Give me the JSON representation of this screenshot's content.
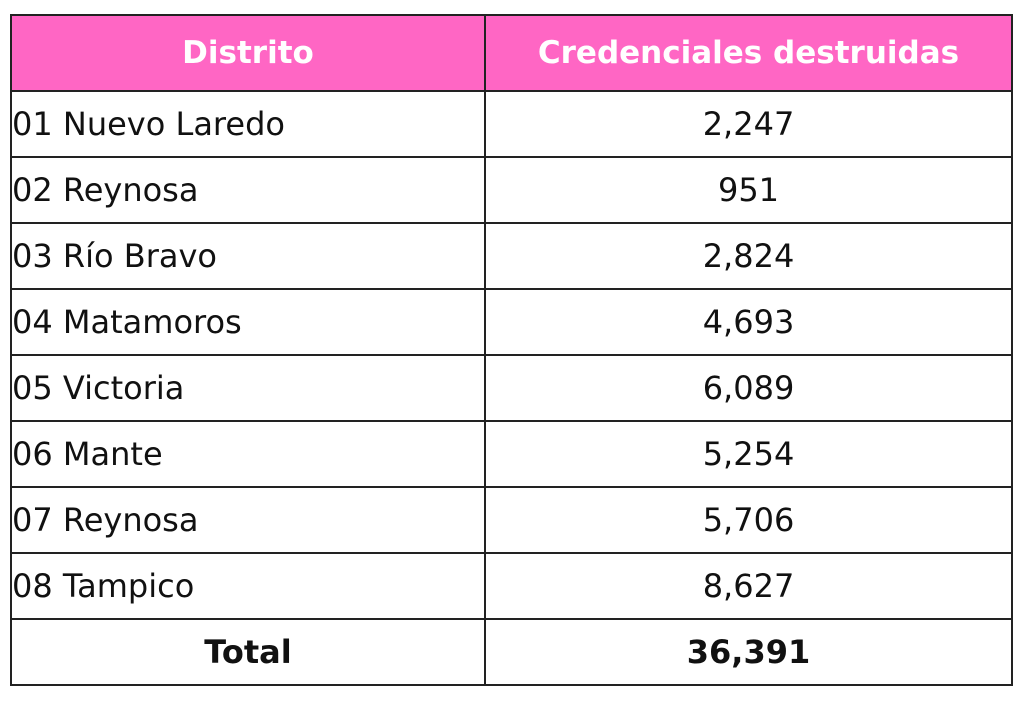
{
  "table": {
    "header_color": "#ff66c4",
    "columns": [
      "Distrito",
      "Credenciales destruidas"
    ],
    "rows": [
      {
        "distrito": "01 Nuevo Laredo",
        "valor": "2,247"
      },
      {
        "distrito": "02 Reynosa",
        "valor": "951"
      },
      {
        "distrito": "03 Río Bravo",
        "valor": "2,824"
      },
      {
        "distrito": "04 Matamoros",
        "valor": "4,693"
      },
      {
        "distrito": "05 Victoria",
        "valor": "6,089"
      },
      {
        "distrito": "06 Mante",
        "valor": "5,254"
      },
      {
        "distrito": "07 Reynosa",
        "valor": "5,706"
      },
      {
        "distrito": "08 Tampico",
        "valor": "8,627"
      }
    ],
    "total": {
      "label": "Total",
      "valor": "36,391"
    }
  },
  "chart_data": {
    "type": "table",
    "title": "",
    "columns": [
      "Distrito",
      "Credenciales destruidas"
    ],
    "categories": [
      "01 Nuevo Laredo",
      "02 Reynosa",
      "03 Río Bravo",
      "04 Matamoros",
      "05 Victoria",
      "06 Mante",
      "07 Reynosa",
      "08 Tampico"
    ],
    "values": [
      2247,
      951,
      2824,
      4693,
      6089,
      5254,
      5706,
      8627
    ],
    "total": 36391
  }
}
